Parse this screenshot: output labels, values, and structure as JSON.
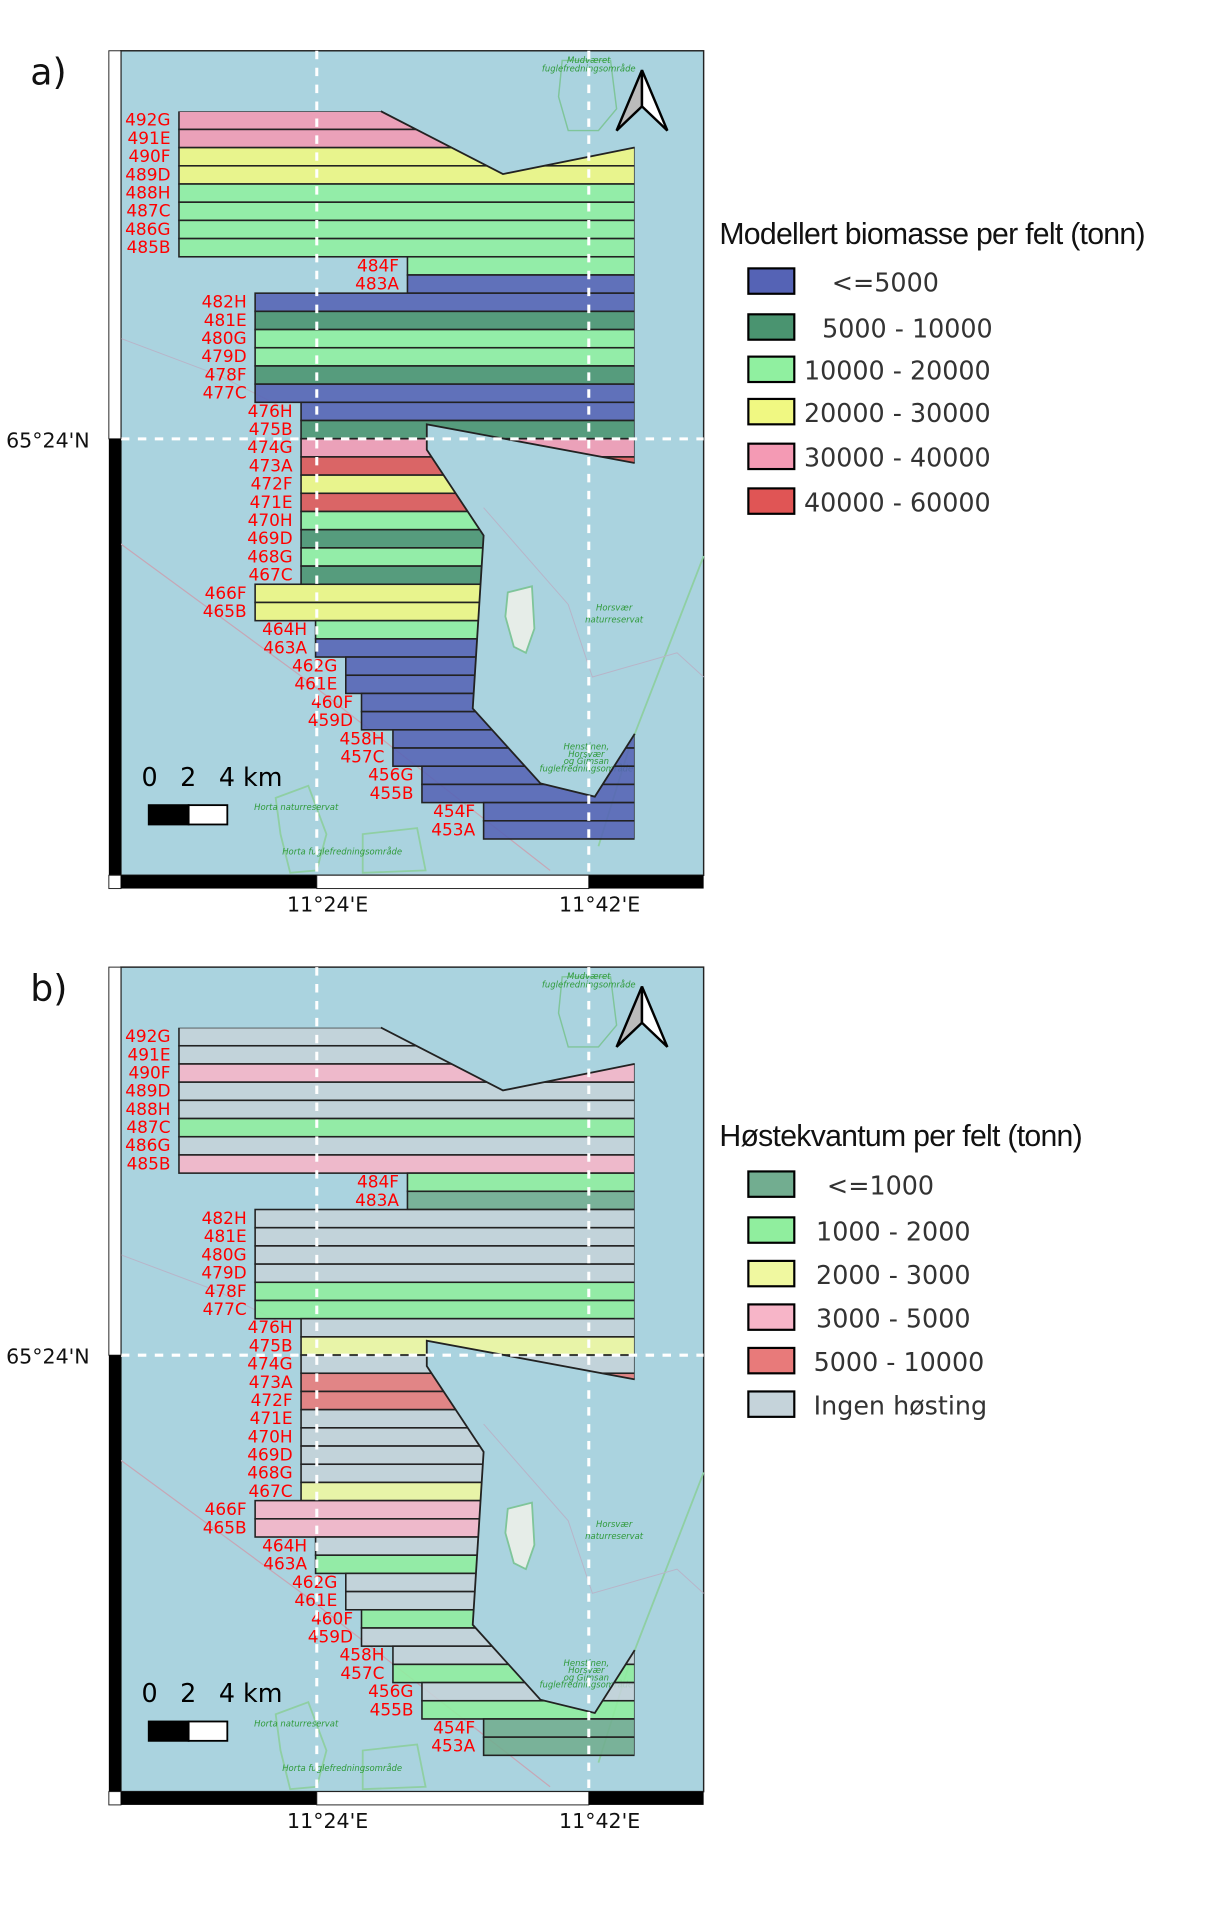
{
  "map_style": {
    "water": "#aad3df",
    "field_label_color": "#ff0000"
  },
  "axes": {
    "x_labels": [
      "11°24'E",
      "11°42'E"
    ],
    "y_label": "65°24'N",
    "scale_bar": [
      "0",
      "2",
      "4 km"
    ]
  },
  "place_names": {
    "mudvaeret": [
      "Mudværet",
      "fuglefredningsområde"
    ],
    "horsvaer": [
      "Horsvær",
      "naturreservat"
    ],
    "henstinen": [
      "Henstinen,",
      "Horsvær",
      "og Gimsan",
      "fuglefredningsområde"
    ],
    "horta_nr": "Horta naturreservat",
    "horta_fg": "Horta fuglefredningsområde"
  },
  "field_ids": [
    "492G",
    "491E",
    "490F",
    "489D",
    "488H",
    "487C",
    "486G",
    "485B",
    "484F",
    "483A",
    "482H",
    "481E",
    "480G",
    "479D",
    "478F",
    "477C",
    "476H",
    "475B",
    "474G",
    "473A",
    "472F",
    "471E",
    "470H",
    "469D",
    "468G",
    "467C",
    "466F",
    "465B",
    "464H",
    "463A",
    "462G",
    "461E",
    "460F",
    "459D",
    "458H",
    "457C",
    "456G",
    "455B",
    "454F",
    "453A"
  ],
  "panels": [
    {
      "label": "a)",
      "legend": {
        "title": "Modellert biomasse per felt (tonn)",
        "classes": [
          {
            "label": "<=5000",
            "color": "#5563b5"
          },
          {
            "label": "5000 - 10000",
            "color": "#4a9470"
          },
          {
            "label": "10000 - 20000",
            "color": "#90f0a0"
          },
          {
            "label": "20000 - 30000",
            "color": "#f0f882"
          },
          {
            "label": "30000 - 40000",
            "color": "#f49ab4"
          },
          {
            "label": "40000 - 60000",
            "color": "#e05555"
          }
        ]
      },
      "field_classes": [
        4,
        4,
        3,
        3,
        2,
        2,
        2,
        2,
        2,
        0,
        0,
        1,
        2,
        2,
        1,
        0,
        0,
        1,
        4,
        5,
        3,
        5,
        2,
        1,
        2,
        1,
        3,
        3,
        2,
        0,
        0,
        0,
        0,
        0,
        0,
        0,
        0,
        0,
        0,
        0
      ]
    },
    {
      "label": "b)",
      "legend": {
        "title": "Høstekvantum per felt (tonn)",
        "classes": [
          {
            "label": "<=1000",
            "color": "#72ad90"
          },
          {
            "label": "1000 - 2000",
            "color": "#90ee9e"
          },
          {
            "label": "2000 - 3000",
            "color": "#f0f8a0"
          },
          {
            "label": "3000 - 5000",
            "color": "#f7b5c8"
          },
          {
            "label": "5000 - 10000",
            "color": "#e87a7a"
          },
          {
            "label": "Ingen høsting",
            "color": "#c5d3da"
          }
        ]
      },
      "field_classes": [
        5,
        5,
        3,
        5,
        5,
        1,
        5,
        3,
        1,
        0,
        5,
        5,
        5,
        5,
        1,
        1,
        5,
        2,
        5,
        4,
        4,
        5,
        5,
        5,
        5,
        2,
        3,
        3,
        5,
        1,
        5,
        5,
        1,
        5,
        5,
        1,
        5,
        1,
        0,
        0
      ]
    }
  ]
}
